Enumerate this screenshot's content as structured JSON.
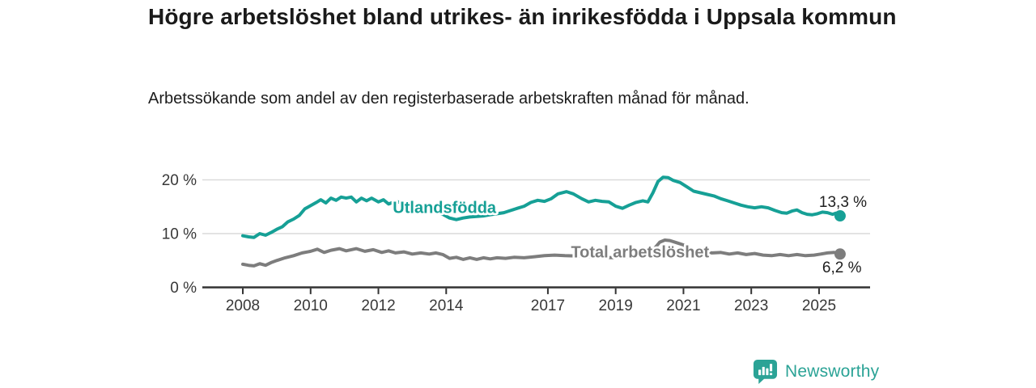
{
  "chart_data": {
    "type": "line",
    "title": "Högre arbetslöshet bland utrikes- än inrikesfödda i Uppsala kommun",
    "subtitle": "Arbetssökande som andel av den registerbaserade arbetskraften månad för månad.",
    "unit": "%",
    "grid": true,
    "legend_position": "inline-labels-on-lines",
    "x_axis": {
      "ticks": [
        2008,
        2010,
        2012,
        2014,
        2017,
        2019,
        2021,
        2023,
        2025
      ],
      "labels": [
        "2008",
        "2010",
        "2012",
        "2014",
        "2017",
        "2019",
        "2021",
        "2023",
        "2025"
      ],
      "range": [
        2006.8,
        2026.5
      ]
    },
    "y_axis": {
      "ticks": [
        0,
        10,
        20
      ],
      "labels": [
        "0 %",
        "10 %",
        "20 %"
      ],
      "range": [
        0,
        22
      ]
    },
    "series": [
      {
        "name": "Utlandsfödda",
        "color": "#16a096",
        "line_label": {
          "text": "Utlandsfödda",
          "year": 2013.95,
          "value": 14.9
        },
        "end_label": "13,3 %",
        "end_label_position": "above",
        "end_value": 13.3,
        "points": [
          [
            2008.0,
            9.6
          ],
          [
            2008.17,
            9.4
          ],
          [
            2008.33,
            9.3
          ],
          [
            2008.5,
            10.0
          ],
          [
            2008.67,
            9.7
          ],
          [
            2008.83,
            10.2
          ],
          [
            2009.0,
            10.8
          ],
          [
            2009.17,
            11.3
          ],
          [
            2009.33,
            12.2
          ],
          [
            2009.5,
            12.7
          ],
          [
            2009.67,
            13.4
          ],
          [
            2009.83,
            14.6
          ],
          [
            2010.0,
            15.2
          ],
          [
            2010.17,
            15.8
          ],
          [
            2010.3,
            16.3
          ],
          [
            2010.45,
            15.7
          ],
          [
            2010.6,
            16.6
          ],
          [
            2010.75,
            16.2
          ],
          [
            2010.9,
            16.8
          ],
          [
            2011.05,
            16.6
          ],
          [
            2011.2,
            16.8
          ],
          [
            2011.35,
            15.9
          ],
          [
            2011.5,
            16.6
          ],
          [
            2011.65,
            16.1
          ],
          [
            2011.8,
            16.6
          ],
          [
            2012.0,
            15.9
          ],
          [
            2012.15,
            16.3
          ],
          [
            2012.3,
            15.5
          ],
          [
            2012.5,
            16.0
          ],
          [
            2012.7,
            15.7
          ],
          [
            2012.9,
            15.3
          ],
          [
            2013.1,
            15.0
          ],
          [
            2013.3,
            14.7
          ],
          [
            2013.5,
            14.4
          ],
          [
            2013.7,
            14.1
          ],
          [
            2013.9,
            13.6
          ],
          [
            2014.1,
            12.9
          ],
          [
            2014.3,
            12.6
          ],
          [
            2014.5,
            12.9
          ],
          [
            2014.7,
            13.1
          ],
          [
            2014.9,
            13.2
          ],
          [
            2015.1,
            13.3
          ],
          [
            2015.3,
            13.5
          ],
          [
            2015.5,
            13.7
          ],
          [
            2015.7,
            13.9
          ],
          [
            2015.9,
            14.3
          ],
          [
            2016.1,
            14.7
          ],
          [
            2016.3,
            15.1
          ],
          [
            2016.5,
            15.8
          ],
          [
            2016.7,
            16.2
          ],
          [
            2016.9,
            16.0
          ],
          [
            2017.1,
            16.5
          ],
          [
            2017.3,
            17.4
          ],
          [
            2017.55,
            17.8
          ],
          [
            2017.75,
            17.4
          ],
          [
            2018.0,
            16.5
          ],
          [
            2018.2,
            15.9
          ],
          [
            2018.4,
            16.2
          ],
          [
            2018.6,
            16.0
          ],
          [
            2018.8,
            15.9
          ],
          [
            2019.0,
            15.1
          ],
          [
            2019.2,
            14.7
          ],
          [
            2019.4,
            15.3
          ],
          [
            2019.6,
            15.8
          ],
          [
            2019.8,
            16.1
          ],
          [
            2019.95,
            15.9
          ],
          [
            2020.1,
            17.6
          ],
          [
            2020.25,
            19.7
          ],
          [
            2020.4,
            20.5
          ],
          [
            2020.55,
            20.4
          ],
          [
            2020.7,
            19.9
          ],
          [
            2020.9,
            19.5
          ],
          [
            2021.1,
            18.7
          ],
          [
            2021.3,
            17.9
          ],
          [
            2021.5,
            17.6
          ],
          [
            2021.7,
            17.3
          ],
          [
            2021.9,
            17.0
          ],
          [
            2022.1,
            16.5
          ],
          [
            2022.3,
            16.1
          ],
          [
            2022.5,
            15.7
          ],
          [
            2022.7,
            15.3
          ],
          [
            2022.9,
            15.0
          ],
          [
            2023.1,
            14.8
          ],
          [
            2023.3,
            15.0
          ],
          [
            2023.5,
            14.8
          ],
          [
            2023.7,
            14.3
          ],
          [
            2023.9,
            13.9
          ],
          [
            2024.05,
            13.8
          ],
          [
            2024.2,
            14.2
          ],
          [
            2024.35,
            14.4
          ],
          [
            2024.5,
            13.9
          ],
          [
            2024.65,
            13.6
          ],
          [
            2024.8,
            13.5
          ],
          [
            2024.95,
            13.7
          ],
          [
            2025.1,
            14.0
          ],
          [
            2025.25,
            13.9
          ],
          [
            2025.4,
            13.6
          ],
          [
            2025.5,
            13.8
          ],
          [
            2025.62,
            13.3
          ]
        ]
      },
      {
        "name": "Total arbetslöshet",
        "color": "#7d7d7d",
        "line_label": {
          "text": "Total arbetslöshet",
          "year": 2019.72,
          "value": 6.6
        },
        "end_label": "6,2 %",
        "end_label_position": "below",
        "end_value": 6.2,
        "points": [
          [
            2008.0,
            4.3
          ],
          [
            2008.17,
            4.1
          ],
          [
            2008.33,
            4.0
          ],
          [
            2008.5,
            4.4
          ],
          [
            2008.67,
            4.1
          ],
          [
            2008.83,
            4.6
          ],
          [
            2009.0,
            5.0
          ],
          [
            2009.25,
            5.5
          ],
          [
            2009.5,
            5.9
          ],
          [
            2009.75,
            6.4
          ],
          [
            2010.0,
            6.7
          ],
          [
            2010.2,
            7.1
          ],
          [
            2010.4,
            6.5
          ],
          [
            2010.6,
            6.9
          ],
          [
            2010.85,
            7.2
          ],
          [
            2011.05,
            6.8
          ],
          [
            2011.35,
            7.2
          ],
          [
            2011.6,
            6.7
          ],
          [
            2011.85,
            7.0
          ],
          [
            2012.1,
            6.5
          ],
          [
            2012.3,
            6.8
          ],
          [
            2012.5,
            6.4
          ],
          [
            2012.75,
            6.6
          ],
          [
            2013.0,
            6.2
          ],
          [
            2013.25,
            6.4
          ],
          [
            2013.5,
            6.2
          ],
          [
            2013.7,
            6.4
          ],
          [
            2013.9,
            6.1
          ],
          [
            2014.1,
            5.4
          ],
          [
            2014.3,
            5.6
          ],
          [
            2014.5,
            5.2
          ],
          [
            2014.7,
            5.5
          ],
          [
            2014.9,
            5.2
          ],
          [
            2015.1,
            5.5
          ],
          [
            2015.3,
            5.3
          ],
          [
            2015.5,
            5.5
          ],
          [
            2015.75,
            5.4
          ],
          [
            2016.0,
            5.6
          ],
          [
            2016.3,
            5.5
          ],
          [
            2016.6,
            5.7
          ],
          [
            2016.9,
            5.9
          ],
          [
            2017.2,
            6.0
          ],
          [
            2017.5,
            5.9
          ],
          [
            2018.0,
            5.8
          ],
          [
            2018.5,
            5.6
          ],
          [
            2019.0,
            5.5
          ],
          [
            2019.5,
            5.7
          ],
          [
            2019.9,
            5.9
          ],
          [
            2020.1,
            6.9
          ],
          [
            2020.3,
            8.4
          ],
          [
            2020.45,
            8.8
          ],
          [
            2020.6,
            8.7
          ],
          [
            2020.8,
            8.3
          ],
          [
            2021.0,
            7.9
          ],
          [
            2021.2,
            7.2
          ],
          [
            2021.4,
            6.8
          ],
          [
            2021.6,
            6.5
          ],
          [
            2021.85,
            6.4
          ],
          [
            2022.1,
            6.5
          ],
          [
            2022.35,
            6.2
          ],
          [
            2022.6,
            6.4
          ],
          [
            2022.85,
            6.1
          ],
          [
            2023.1,
            6.3
          ],
          [
            2023.35,
            6.0
          ],
          [
            2023.6,
            5.9
          ],
          [
            2023.85,
            6.1
          ],
          [
            2024.1,
            5.9
          ],
          [
            2024.35,
            6.1
          ],
          [
            2024.6,
            5.9
          ],
          [
            2024.85,
            6.0
          ],
          [
            2025.05,
            6.2
          ],
          [
            2025.25,
            6.4
          ],
          [
            2025.45,
            6.5
          ],
          [
            2025.62,
            6.2
          ]
        ]
      }
    ]
  },
  "branding": {
    "name": "Newsworthy",
    "color": "#2ba396",
    "icon": "newsworthy-speech-bubble-bar-chart-icon"
  }
}
